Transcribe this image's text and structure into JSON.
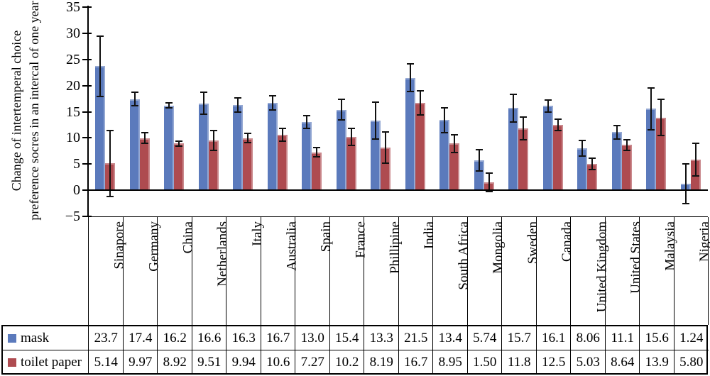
{
  "labels": {
    "ylabel_line1": "Change of intertemperal choice",
    "ylabel_line2": "preference socres in an intercal of one year"
  },
  "colors": {
    "mask_bar": "#5B7ABC",
    "toilet_paper_bar": "#AE4B50",
    "error_bar": "#111111",
    "axis": "#000000"
  },
  "chart_data": {
    "type": "bar",
    "title": "",
    "xlabel": "",
    "ylabel": "Change of intertemperal choice preference socres in an intercal of one year",
    "ylim": [
      -5,
      35
    ],
    "yticks": [
      35,
      30,
      25,
      20,
      15,
      10,
      5,
      0,
      -5
    ],
    "grid": false,
    "error_bars": true,
    "legend_position": "data-table-left",
    "categories": [
      "Sinapore",
      "Germany",
      "China",
      "Netherlands",
      "Italy",
      "Australia",
      "Spain",
      "France",
      "Phillipine",
      "India",
      "South Africa",
      "Mongolia",
      "Sweden",
      "Canada",
      "United Kingdom",
      "United States",
      "Malaysia",
      "Nigeria"
    ],
    "series": [
      {
        "name": "mask",
        "color": "#5B7ABC",
        "values": [
          23.7,
          17.4,
          16.2,
          16.6,
          16.3,
          16.7,
          13.0,
          15.4,
          13.3,
          21.5,
          13.4,
          5.74,
          15.7,
          16.1,
          8.06,
          11.1,
          15.6,
          1.24
        ],
        "display_values": [
          "23.7",
          "17.4",
          "16.2",
          "16.6",
          "16.3",
          "16.7",
          "13.0",
          "15.4",
          "13.3",
          "21.5",
          "13.4",
          "5.74",
          "15.7",
          "16.1",
          "8.06",
          "11.1",
          "15.6",
          "1.24"
        ],
        "errors_est": [
          5.8,
          1.3,
          0.5,
          2.1,
          1.3,
          1.4,
          1.2,
          2.0,
          3.5,
          2.6,
          2.4,
          2.0,
          2.6,
          1.2,
          1.5,
          1.3,
          4.0,
          3.8
        ]
      },
      {
        "name": "toilet paper",
        "color": "#AE4B50",
        "values": [
          5.14,
          9.97,
          8.92,
          9.51,
          9.94,
          10.6,
          7.27,
          10.2,
          8.19,
          16.7,
          8.95,
          1.5,
          11.8,
          12.5,
          5.03,
          8.64,
          13.9,
          5.8
        ],
        "display_values": [
          "5.14",
          "9.97",
          "8.92",
          "9.51",
          "9.94",
          "10.6",
          "7.27",
          "10.2",
          "8.19",
          "16.7",
          "8.95",
          "1.50",
          "11.8",
          "12.5",
          "5.03",
          "8.64",
          "13.9",
          "5.80"
        ],
        "errors_est": [
          6.3,
          1.0,
          0.5,
          1.9,
          0.9,
          1.2,
          0.9,
          1.6,
          3.0,
          2.3,
          1.7,
          1.8,
          2.2,
          1.1,
          1.1,
          1.0,
          3.5,
          3.1
        ]
      }
    ]
  }
}
